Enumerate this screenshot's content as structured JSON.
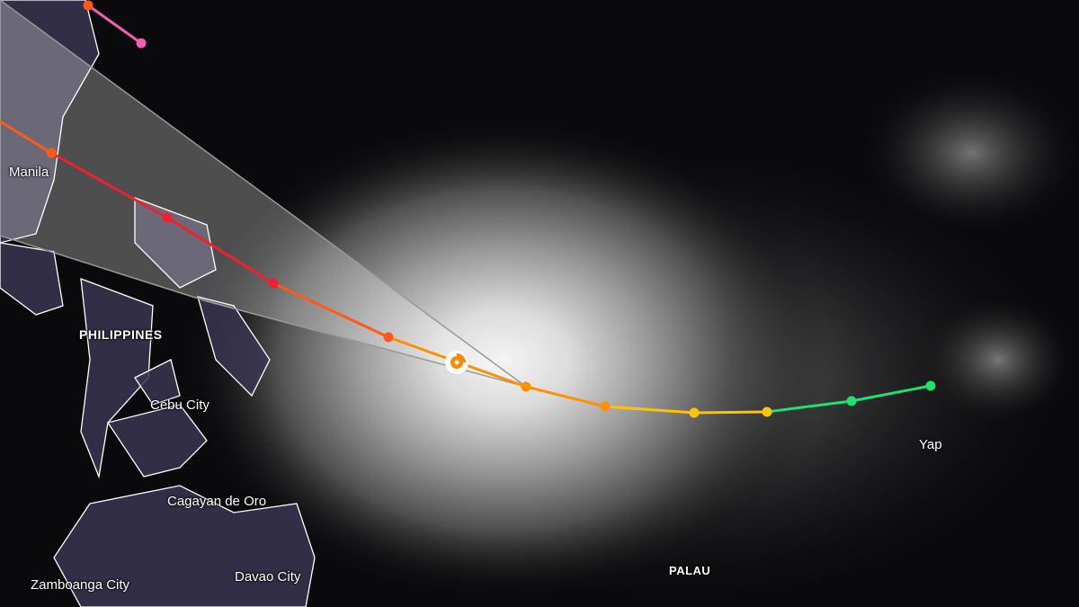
{
  "labels": {
    "manila": "Manila",
    "philippines": "PHILIPPINES",
    "cebu": "Cebu City",
    "cagayan": "Cagayan de Oro",
    "davao": "Davao City",
    "zamboanga": "Zamboanga City",
    "palau": "PALAU",
    "yap": "Yap"
  },
  "colors": {
    "land": "#3a3550",
    "coast": "#ffffff",
    "cone": "#ffffff",
    "storm_icon": "#ff8a00",
    "track_pink": "#f060b0",
    "track_red": "#f02030",
    "track_orange_red": "#ff5a1a",
    "track_orange": "#ff9000",
    "track_yellow": "#ffc400",
    "track_green": "#20e070"
  },
  "storm_icon": "tropical-cyclone-icon"
}
